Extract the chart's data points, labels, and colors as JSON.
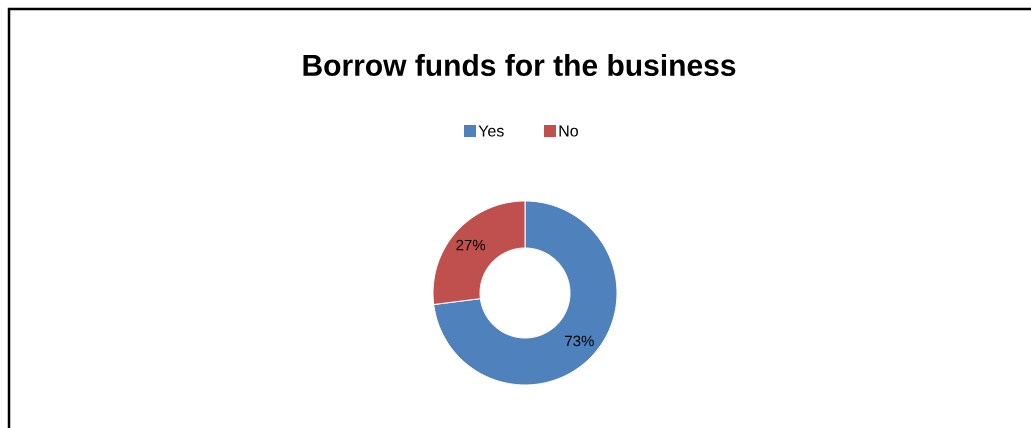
{
  "chart_data": {
    "type": "donut",
    "title": "Borrow funds for the business",
    "categories": [
      "Yes",
      "No"
    ],
    "values": [
      73,
      27
    ],
    "colors": [
      "#4f81bd",
      "#c0504d"
    ],
    "value_labels": [
      "73%",
      "27%"
    ],
    "legend": "top"
  }
}
